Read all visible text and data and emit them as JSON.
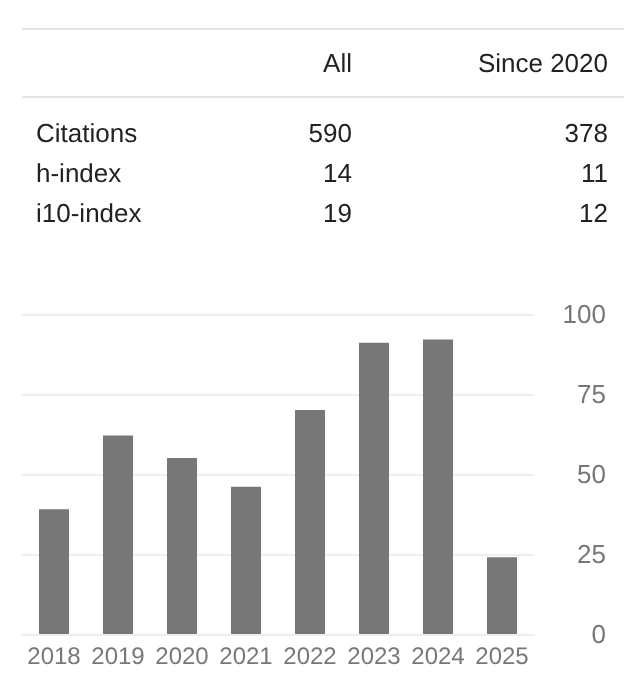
{
  "chart_data": [
    {
      "type": "other",
      "data_labels": true,
      "categories": [
        "Citations",
        "h-index",
        "i10-index"
      ],
      "series": [
        {
          "name": "All",
          "values": [
            590,
            14,
            19
          ]
        },
        {
          "name": "Since 2020",
          "values": [
            378,
            11,
            12
          ]
        }
      ]
    },
    {
      "type": "bar",
      "categories": [
        "2018",
        "2019",
        "2020",
        "2021",
        "2022",
        "2023",
        "2024",
        "2025"
      ],
      "values": [
        39,
        62,
        55,
        46,
        70,
        91,
        92,
        24
      ],
      "color": "#777777",
      "ylim": [
        0,
        100
      ],
      "yticks": [
        0,
        25,
        50,
        75,
        100
      ],
      "grid": "y"
    }
  ]
}
